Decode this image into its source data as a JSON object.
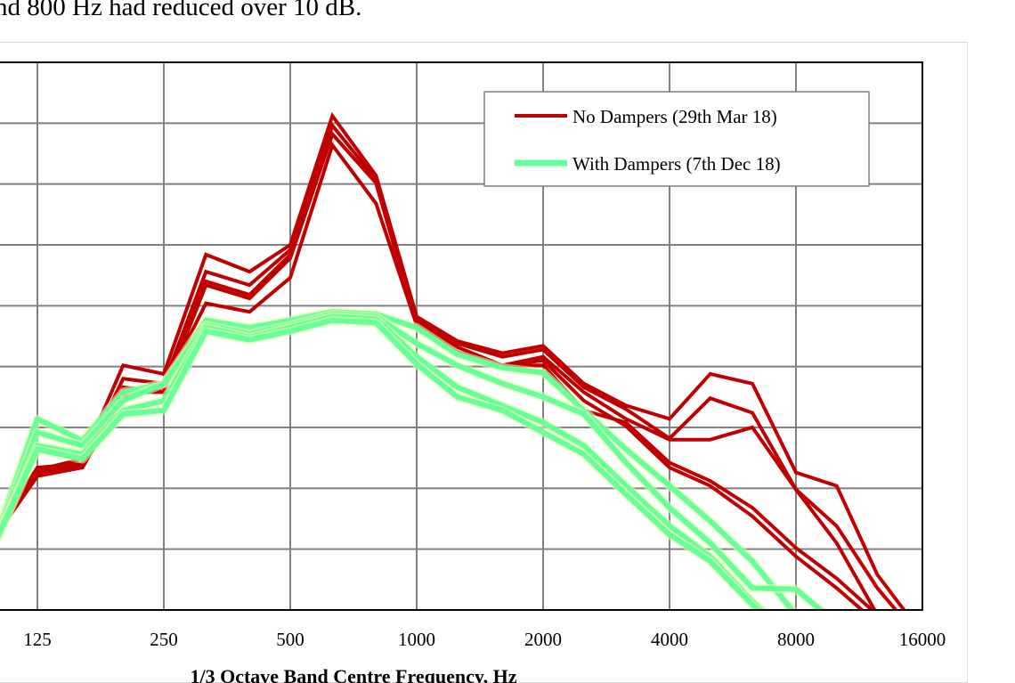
{
  "document": {
    "intro_text": "nd 800 Hz had reduced over 10 dB."
  },
  "chart_data": {
    "type": "line",
    "title": "",
    "xlabel": "1/3 Octave Band Centre Frequency, Hz",
    "ylabel": "",
    "x_scale": "log2",
    "x": [
      100,
      125,
      160,
      200,
      250,
      315,
      400,
      500,
      630,
      800,
      1000,
      1250,
      1600,
      2000,
      2500,
      3150,
      4000,
      5000,
      6300,
      8000,
      10000,
      12500,
      16000
    ],
    "x_tick_labels": [
      "125",
      "250",
      "500",
      "1000",
      "2000",
      "4000",
      "8000",
      "16000"
    ],
    "x_ticks": [
      125,
      250,
      500,
      1000,
      2000,
      4000,
      8000,
      16000
    ],
    "xlim": [
      100,
      16000
    ],
    "ylim": [
      0,
      45
    ],
    "y_grid_step": 5,
    "grid": true,
    "legend_position": "top-right",
    "legend": [
      {
        "label": "No Dampers (29th Mar 18)",
        "color": "#C00000"
      },
      {
        "label": "With Dampers (7th Dec 18)",
        "color": "#66FF99"
      }
    ],
    "series": [
      {
        "name": "No Dampers (29th Mar 18)",
        "group": 0,
        "values": [
          6.9,
          11.5,
          12.4,
          20.1,
          19.4,
          29.2,
          27.8,
          30.0,
          40.6,
          35.7,
          24.1,
          22.1,
          21.1,
          21.7,
          18.6,
          16.8,
          15.7,
          19.4,
          18.6,
          11.3,
          10.2,
          2.9,
          -2.0
        ]
      },
      {
        "name": "No Dampers (29th Mar 18)",
        "group": 0,
        "values": [
          6.2,
          11.3,
          12.0,
          19.0,
          18.6,
          27.8,
          26.7,
          29.6,
          39.8,
          35.4,
          23.8,
          21.9,
          20.8,
          21.4,
          18.3,
          16.5,
          14.1,
          17.4,
          16.2,
          9.9,
          6.9,
          1.8,
          -2.6
        ]
      },
      {
        "name": "No Dampers (29th Mar 18)",
        "group": 0,
        "values": [
          6.6,
          11.7,
          12.0,
          18.3,
          17.9,
          27.0,
          25.9,
          29.2,
          39.1,
          35.1,
          23.6,
          21.6,
          20.1,
          20.8,
          17.9,
          15.7,
          14.0,
          14.0,
          15.0,
          9.9,
          5.5,
          -0.4,
          null
        ]
      },
      {
        "name": "No Dampers (29th Mar 18)",
        "group": 0,
        "values": [
          6.2,
          11.0,
          11.7,
          17.9,
          17.9,
          26.7,
          25.6,
          28.9,
          39.1,
          35.1,
          23.4,
          21.2,
          20.1,
          20.1,
          16.4,
          15.4,
          12.1,
          10.6,
          8.4,
          5.1,
          2.6,
          -0.4,
          null
        ]
      },
      {
        "name": "No Dampers (29th Mar 18)",
        "group": 0,
        "values": [
          6.2,
          11.3,
          11.7,
          17.5,
          18.3,
          25.2,
          24.5,
          27.3,
          38.2,
          33.4,
          23.4,
          21.2,
          20.1,
          20.5,
          17.2,
          15.1,
          11.7,
          10.2,
          7.7,
          4.4,
          1.8,
          -1.1,
          null
        ]
      },
      {
        "name": "With Dampers (7th Dec 18)",
        "group": 1,
        "values": [
          6.2,
          15.7,
          13.9,
          17.9,
          18.6,
          23.8,
          23.2,
          23.8,
          24.5,
          24.3,
          23.2,
          21.0,
          19.9,
          19.5,
          16.4,
          13.2,
          10.2,
          7.3,
          4.0,
          -0.4,
          null,
          null,
          null
        ]
      },
      {
        "name": "With Dampers (7th Dec 18)",
        "group": 1,
        "values": [
          6.0,
          14.6,
          13.5,
          17.2,
          18.6,
          23.4,
          22.7,
          23.4,
          24.3,
          24.1,
          21.9,
          20.1,
          18.6,
          17.5,
          16.1,
          12.1,
          8.4,
          5.5,
          1.8,
          1.7,
          -1.1,
          null,
          null
        ]
      },
      {
        "name": "With Dampers (7th Dec 18)",
        "group": 1,
        "values": [
          5.8,
          13.5,
          12.8,
          16.4,
          17.2,
          23.2,
          22.4,
          23.2,
          24.1,
          23.9,
          20.8,
          18.3,
          16.8,
          15.4,
          13.5,
          10.2,
          6.9,
          4.4,
          0.7,
          -2.6,
          null,
          null,
          null
        ]
      },
      {
        "name": "With Dampers (7th Dec 18)",
        "group": 1,
        "values": [
          5.8,
          13.2,
          12.4,
          16.1,
          16.4,
          22.9,
          22.2,
          22.9,
          23.8,
          23.6,
          20.2,
          17.5,
          16.4,
          14.6,
          12.8,
          9.5,
          6.2,
          4.0,
          0.4,
          -2.6,
          null,
          null,
          null
        ]
      }
    ]
  }
}
